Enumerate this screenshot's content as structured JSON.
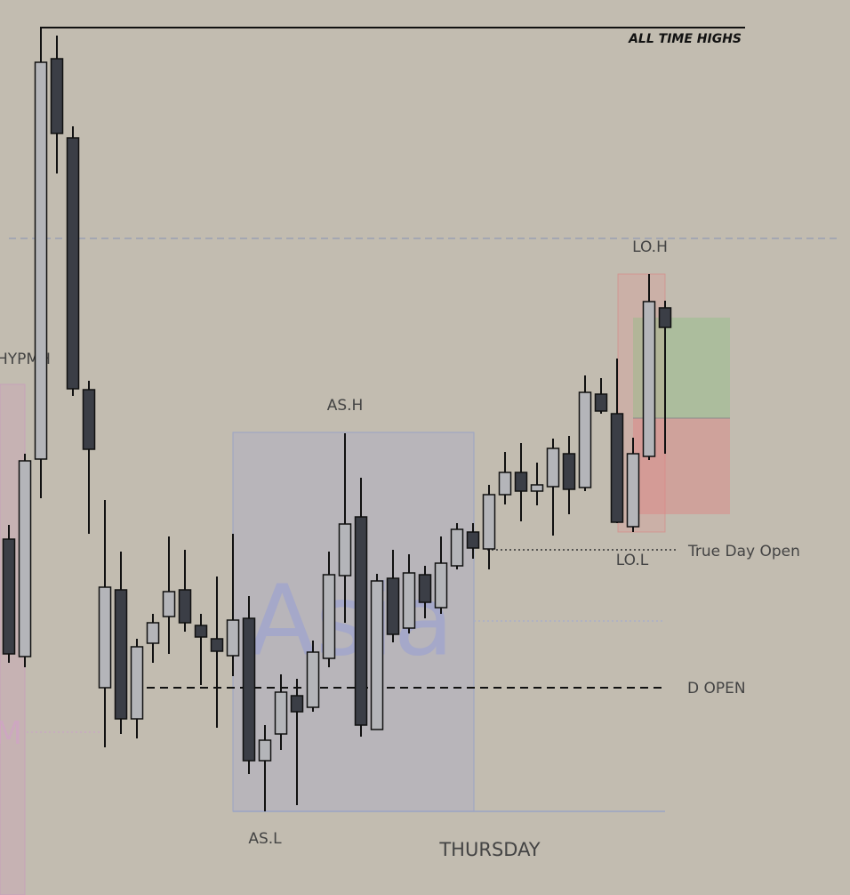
{
  "chart_data": {
    "type": "candlestick",
    "open": [
      400,
      268,
      490,
      940,
      851,
      568,
      233,
      343,
      198,
      283,
      313,
      343,
      303,
      288,
      269,
      311,
      151,
      181,
      224,
      211,
      266,
      359,
      425,
      186,
      356,
      300,
      360,
      323,
      370,
      408,
      389,
      450,
      475,
      454,
      459,
      496,
      458,
      563,
      541,
      414,
      493,
      660
    ],
    "high": [
      416,
      496,
      976,
      966,
      864,
      578,
      444,
      386,
      288,
      316,
      403,
      388,
      316,
      358,
      406,
      336,
      191,
      248,
      243,
      286,
      386,
      519,
      469,
      361,
      388,
      383,
      370,
      403,
      418,
      418,
      461,
      498,
      508,
      486,
      513,
      516,
      584,
      581,
      603,
      514,
      698,
      668
    ],
    "low": [
      261,
      256,
      446,
      811,
      561,
      406,
      166,
      181,
      176,
      261,
      271,
      296,
      236,
      188,
      246,
      136,
      94,
      163,
      101,
      206,
      256,
      306,
      178,
      186,
      284,
      294,
      311,
      316,
      366,
      378,
      366,
      439,
      420,
      438,
      404,
      428,
      454,
      541,
      418,
      408,
      489,
      496
    ],
    "close": [
      271,
      488,
      936,
      856,
      569,
      501,
      346,
      198,
      279,
      306,
      341,
      306,
      290,
      274,
      309,
      151,
      174,
      228,
      206,
      273,
      360,
      417,
      191,
      353,
      293,
      362,
      329,
      373,
      411,
      390,
      450,
      475,
      454,
      461,
      502,
      456,
      565,
      544,
      419,
      496,
      667,
      638
    ],
    "up_color": "#b4b5b9",
    "down_color": "#3b3e46",
    "ylim": [
      0,
      1006
    ],
    "levels": [
      {
        "label": "ALL TIME HIGHS",
        "value": 975
      },
      {
        "value": 738
      },
      {
        "label": "True Day Open",
        "value": 388
      },
      {
        "label": "D OPEN",
        "value": 233
      },
      {
        "value": 308
      },
      {
        "value": 94
      }
    ],
    "annotations": [
      "LO.H",
      "LO.L",
      "AS.H",
      "AS.L",
      "THURSDAY",
      "HYPMH",
      "Asia",
      "M"
    ]
  }
}
